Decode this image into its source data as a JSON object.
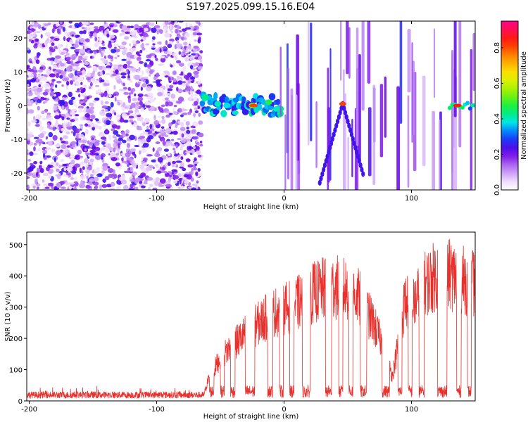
{
  "page": {
    "title": "S197.2025.099.15.16.E04"
  },
  "chart_data": [
    {
      "type": "heatmap",
      "title": "S197.2025.099.15.16.E04",
      "xlabel": "Height of straight line (km)",
      "ylabel": "Frequency (Hz)",
      "xlim": [
        -202,
        150
      ],
      "ylim": [
        -25,
        25
      ],
      "x_ticks": [
        "-200",
        "-100",
        "0",
        "100"
      ],
      "y_ticks": [
        "-20",
        "-10",
        "0",
        "10",
        "20"
      ],
      "colorbar": {
        "label": "Normalized spectral amplitude",
        "range": [
          0,
          0.95
        ],
        "ticks": [
          "0.0",
          "0.2",
          "0.4",
          "0.6",
          "0.8"
        ]
      },
      "features": [
        {
          "x": [
            -202,
            -65
          ],
          "description": "noise"
        },
        {
          "x": [
            -65,
            -3
          ],
          "frequency": 0,
          "peak": 0.85
        },
        {
          "x": [
            44,
            48
          ],
          "frequency": 0.5,
          "peak": 0.9
        },
        {
          "x": [
            130,
            150
          ],
          "frequency": 0,
          "peak": 0.9
        }
      ],
      "grid": false
    },
    {
      "type": "line",
      "xlabel": "Height of straight line (km)",
      "ylabel": "SNR (10 * v/v)",
      "xlim": [
        -202,
        150
      ],
      "ylim": [
        0,
        540
      ],
      "x_ticks": [
        "-200",
        "-100",
        "0",
        "100"
      ],
      "y_ticks": [
        "0",
        "100",
        "200",
        "300",
        "400",
        "500"
      ],
      "series": [
        {
          "color": "#e8302c",
          "envelope": {
            "x": [
              -202,
              -63,
              -60,
              -50,
              -40,
              -30,
              -20,
              -10,
              0,
              10,
              20,
              30,
              40,
              50,
              60,
              70,
              80,
              85,
              90,
              95,
              100,
              110,
              120,
              130,
              140,
              150
            ],
            "y": [
              25,
              25,
              80,
              180,
              230,
              280,
              320,
              360,
              380,
              400,
              440,
              460,
              470,
              460,
              420,
              320,
              200,
              100,
              250,
              420,
              380,
              480,
              520,
              520,
              500,
              480
            ]
          }
        }
      ],
      "grid": false
    }
  ]
}
